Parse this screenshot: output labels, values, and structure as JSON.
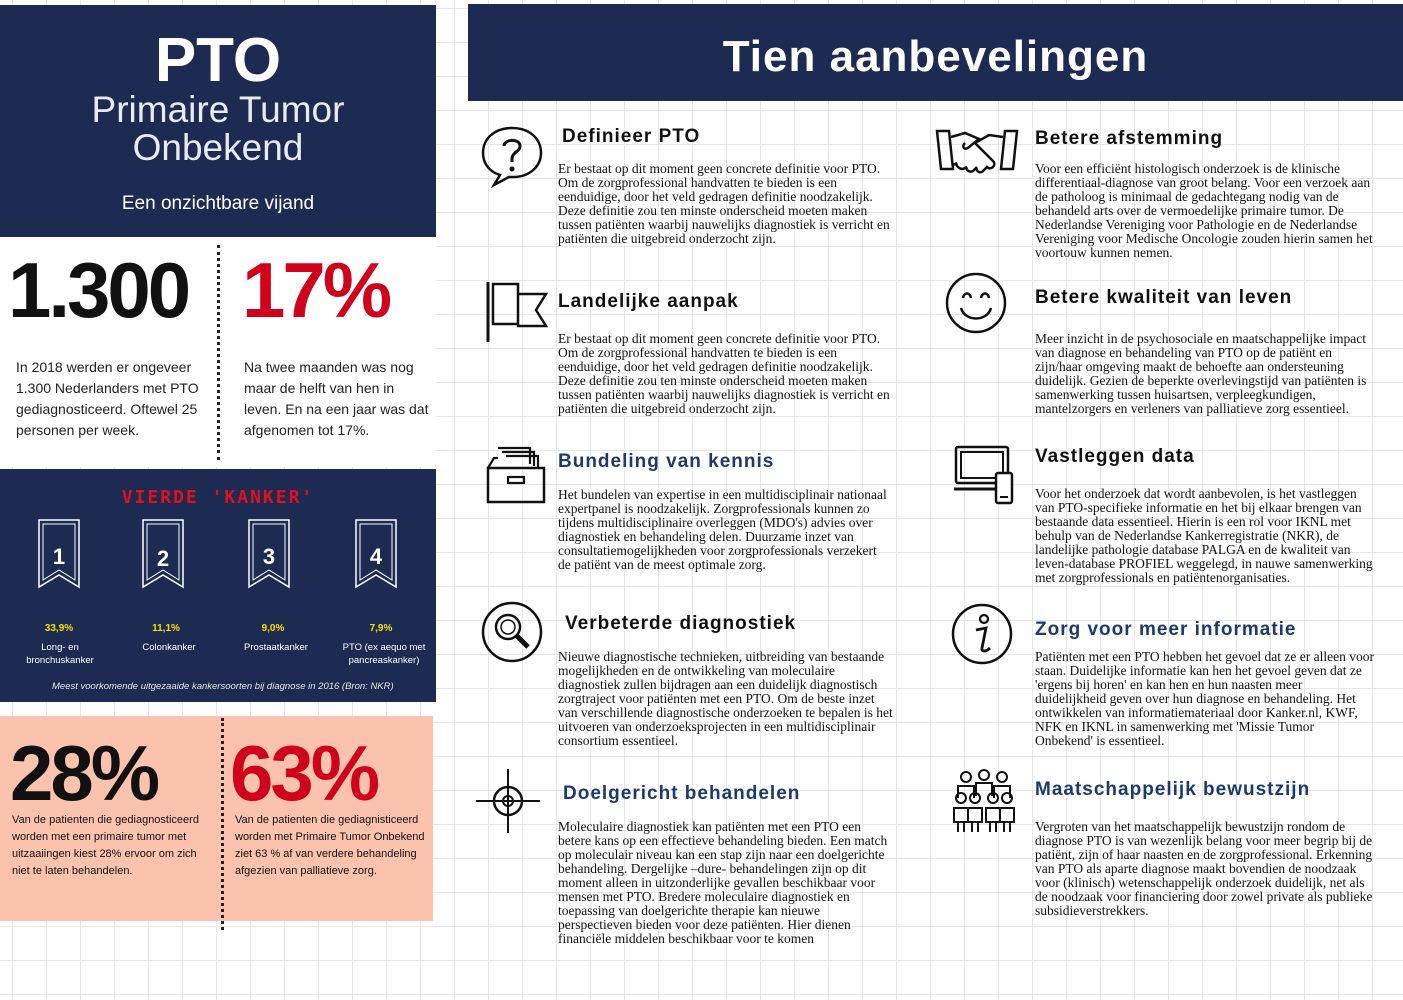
{
  "left": {
    "title": "PTO",
    "subtitle_line1": "Primaire Tumor",
    "subtitle_line2": "Onbekend",
    "tagline": "Een onzichtbare vijand",
    "stat1": {
      "value": "1.300",
      "text": "In 2018 werden er ongeveer 1.300 Nederlanders met PTO gediagnosticeerd. Oftewel 25 personen per week."
    },
    "stat2": {
      "value": "17%",
      "text": "Na twee maanden was nog maar de helft van hen in leven. En na een jaar was dat afgenomen tot 17%."
    },
    "vierde": {
      "title": "VIERDE 'KANKER'",
      "ranks": [
        {
          "num": "1",
          "pct": "33,9%",
          "label": "Long- en bronchuskanker"
        },
        {
          "num": "2",
          "pct": "11,1%",
          "label": "Colonkanker"
        },
        {
          "num": "3",
          "pct": "9,0%",
          "label": "Prostaatkanker"
        },
        {
          "num": "4",
          "pct": "7,9%",
          "label": "PTO (ex aequo met pancreaskanker)"
        }
      ],
      "footnote": "Meest voorkomende uitgezaaide kankersoorten bij diagnose in 2016 (Bron: NKR)"
    },
    "stat3": {
      "value": "28%",
      "text": "Van de patienten die gediagnosticeerd worden met een primaire tumor met uitzaaiingen kiest 28% ervoor om zich niet te laten behandelen."
    },
    "stat4": {
      "value": "63%",
      "text": "Van de patienten die gediagnisticeerd worden met Primaire Tumor Onbekend ziet 63 % af van verdere behandeling afgezien van palliatieve zorg."
    }
  },
  "right": {
    "title": "Tien aanbevelingen",
    "recs": [
      {
        "icon": "question-bubble-icon",
        "title": "Definieer PTO",
        "text": "Er bestaat op dit moment geen concrete definitie voor PTO. Om de zorgprofessional handvatten te bieden is een eenduidige, door het veld gedragen definitie noodzakelijk. Deze definitie zou ten minste onderscheid moeten maken tussen patiënten waarbij nauwelijks diagnostiek is verricht en patiënten die uitgebreid onderzocht zijn."
      },
      {
        "icon": "handshake-icon",
        "title": "Betere afstemming",
        "text": "Voor een efficiënt histologisch onderzoek is de klinische differentiaal-diagnose van groot belang. Voor een verzoek aan de patholoog is minimaal de gedachtegang nodig van de behandeld arts over de vermoedelijke primaire tumor. De Nederlandse Vereniging voor Pathologie en de Nederlandse Vereniging voor Medische Oncologie zouden hierin samen het voortouw kunnen nemen."
      },
      {
        "icon": "flag-icon",
        "title": "Landelijke aanpak",
        "text": "Er bestaat op dit moment geen concrete definitie voor PTO. Om de zorgprofessional handvatten te bieden is een eenduidige, door het veld gedragen definitie noodzakelijk. Deze definitie zou ten minste onderscheid moeten maken tussen patiënten waarbij nauwelijks diagnostiek is verricht en patiënten die uitgebreid onderzocht zijn."
      },
      {
        "icon": "smiley-icon",
        "title": "Betere kwaliteit van leven",
        "text": "Meer inzicht in de psychosociale en maatschappelijke impact van diagnose en behandeling van PTO op de patiënt en zijn/haar omgeving maakt de behoefte aan ondersteuning duidelijk. Gezien de beperkte overlevingstijd van patiënten is samenwerking tussen huisartsen, verpleegkundigen, mantelzorgers en verleners van palliatieve zorg essentieel."
      },
      {
        "icon": "file-boxes-icon",
        "title": "Bundeling van kennis",
        "text": "Het bundelen van expertise in een multidisciplinair nationaal expertpanel is noodzakelijk. Zorgprofessionals kunnen zo tijdens multidisciplinaire overleggen (MDO's) advies over diagnostiek en behandeling delen. Duurzame inzet van consultatiemogelijkheden voor zorgprofessionals verzekert de patiënt van de meest optimale zorg."
      },
      {
        "icon": "devices-icon",
        "title": "Vastleggen data",
        "text": "Voor het onderzoek dat wordt aanbevolen, is het vastleggen van PTO-specifieke informatie en het bij elkaar brengen van bestaande data essentieel. Hierin is een rol voor IKNL met behulp van de Nederlandse Kankerregistratie (NKR), de landelijke pathologie database PALGA en de kwaliteit van leven-database PROFIEL weggelegd, in nauwe samenwerking met zorgprofessionals en patiëntenorganisaties."
      },
      {
        "icon": "magnifier-icon",
        "title": "Verbeterde diagnostiek",
        "text": "Nieuwe diagnostische technieken, uitbreiding van bestaande mogelijkheden en de ontwikkeling van moleculaire diagnostiek zullen bijdragen aan een duidelijk diagnostisch zorgtraject voor patiënten met een PTO. Om de beste inzet van verschillende diagnostische onderzoeken te bepalen is het uitvoeren van onderzoeksprojecten in een multidisciplinair consortium essentieel."
      },
      {
        "icon": "info-icon",
        "title": "Zorg voor meer informatie",
        "text": "Patiënten met een PTO hebben het gevoel dat ze er alleen voor staan. Duidelijke informatie kan hen het gevoel geven dat ze 'ergens bij horen' en kan hen en hun naasten meer duidelijkheid geven over hun diagnose en behandeling. Het ontwikkelen van informatiemateriaal door Kanker.nl, KWF, NFK en IKNL in samenwerking met 'Missie Tumor Onbekend' is essentieel."
      },
      {
        "icon": "crosshair-icon",
        "title": "Doelgericht behandelen",
        "text": "Moleculaire diagnostiek kan patiënten met een PTO een betere kans op een effectieve behandeling bieden. Een match op moleculair niveau kan een stap zijn naar een doelgerichte behandeling. Dergelijke –dure- behandelingen zijn op dit moment alleen in uitzonderlijke gevallen beschikbaar voor mensen met PTO. Bredere moleculaire diagnostiek en toepassing van doelgerichte therapie kan nieuwe perspectieven bieden voor deze patiënten. Hier dienen financiële middelen beschikbaar voor te komen"
      },
      {
        "icon": "people-group-icon",
        "title": "Maatschappelijk bewustzijn",
        "text": "Vergroten van het maatschappelijk bewustzijn rondom de diagnose PTO is van wezenlijk belang voor meer begrip bij de patiënt, zijn of haar naasten en de zorgprofessional. Erkenning van PTO als aparte diagnose maakt bovendien de noodzaak voor (klinisch) wetenschappelijk onderzoek duidelijk, net als de noodzaak voor financiering door zowel private als publieke subsidieverstrekkers."
      }
    ]
  },
  "colors": {
    "navy": "#1d2b52",
    "red": "#d0021b",
    "salmon": "#fbc3ad",
    "yellow": "#f4e000",
    "title_blue": "#1d3a6e"
  }
}
